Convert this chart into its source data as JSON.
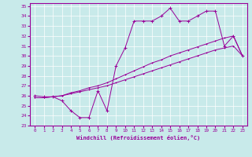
{
  "xlabel": "Windchill (Refroidissement éolien,°C)",
  "xlim": [
    -0.5,
    23.5
  ],
  "ylim": [
    23,
    35.3
  ],
  "xticks": [
    0,
    1,
    2,
    3,
    4,
    5,
    6,
    7,
    8,
    9,
    10,
    11,
    12,
    13,
    14,
    15,
    16,
    17,
    18,
    19,
    20,
    21,
    22,
    23
  ],
  "yticks": [
    23,
    24,
    25,
    26,
    27,
    28,
    29,
    30,
    31,
    32,
    33,
    34,
    35
  ],
  "bg_color": "#c8eaea",
  "grid_color": "#b0d4d4",
  "line_color": "#990099",
  "line1_x": [
    0,
    1,
    2,
    3,
    4,
    5,
    6,
    7,
    8,
    9,
    10,
    11,
    12,
    13,
    14,
    15,
    16,
    17,
    18,
    19,
    20,
    21,
    22,
    23
  ],
  "line1_y": [
    26,
    25.9,
    25.9,
    25.5,
    24.5,
    23.8,
    23.8,
    26.5,
    24.5,
    29,
    30.8,
    33.5,
    33.5,
    33.5,
    34,
    34.8,
    33.5,
    33.5,
    34,
    34.5,
    34.5,
    31,
    32,
    30
  ],
  "line2_x": [
    0,
    1,
    2,
    3,
    4,
    5,
    6,
    7,
    8,
    9,
    10,
    11,
    12,
    13,
    14,
    15,
    16,
    17,
    18,
    19,
    20,
    21,
    22,
    23
  ],
  "line2_y": [
    25.8,
    25.8,
    25.9,
    26.0,
    26.2,
    26.4,
    26.6,
    26.8,
    27.0,
    27.3,
    27.6,
    27.9,
    28.2,
    28.5,
    28.8,
    29.1,
    29.4,
    29.7,
    30.0,
    30.3,
    30.6,
    30.8,
    31.0,
    30.0
  ],
  "line3_x": [
    0,
    1,
    2,
    3,
    4,
    5,
    6,
    7,
    8,
    9,
    10,
    11,
    12,
    13,
    14,
    15,
    16,
    17,
    18,
    19,
    20,
    21,
    22,
    23
  ],
  "line3_y": [
    25.8,
    25.8,
    25.9,
    26.0,
    26.3,
    26.5,
    26.8,
    27.0,
    27.3,
    27.7,
    28.1,
    28.5,
    28.9,
    29.3,
    29.6,
    30.0,
    30.3,
    30.6,
    30.9,
    31.2,
    31.5,
    31.8,
    32.0,
    30.0
  ]
}
